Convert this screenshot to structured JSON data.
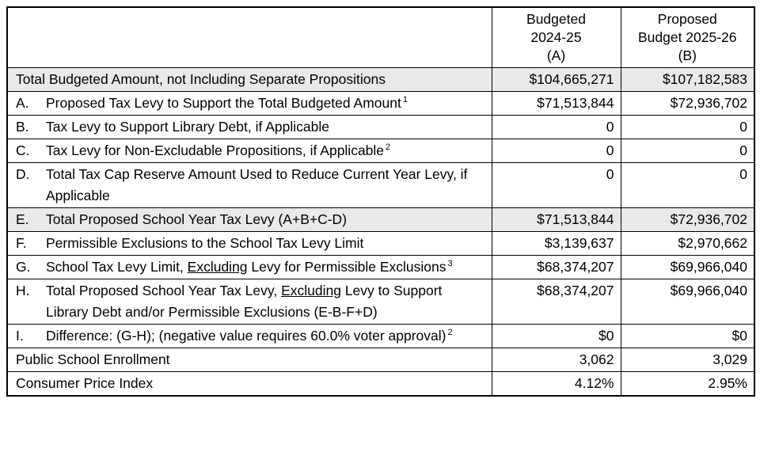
{
  "table": {
    "header": {
      "corner": "",
      "col_a": [
        "Budgeted",
        "2024-25",
        "(A)"
      ],
      "col_b": [
        "Proposed",
        "Budget 2025-26",
        "(B)"
      ]
    },
    "rows": [
      {
        "label": "Total Budgeted Amount, not Including Separate Propositions",
        "values": [
          "$104,665,271",
          "$107,182,583"
        ],
        "shaded": true
      },
      {
        "letter": "A.",
        "label": "Proposed Tax Levy to Support the Total Budgeted Amount",
        "sup": "1",
        "values": [
          "$71,513,844",
          "$72,936,702"
        ],
        "shaded": false
      },
      {
        "letter": "B.",
        "label": "Tax Levy to Support Library Debt, if Applicable",
        "values": [
          "0",
          "0"
        ],
        "shaded": false
      },
      {
        "letter": "C.",
        "label": "Tax Levy for Non-Excludable Propositions, if Applicable",
        "sup": "2",
        "values": [
          "0",
          "0"
        ],
        "shaded": false
      },
      {
        "letter": "D.",
        "label": "Total Tax Cap Reserve Amount Used to Reduce Current Year Levy, if Applicable",
        "values": [
          "0",
          "0"
        ],
        "shaded": false
      },
      {
        "letter": "E.",
        "label": "Total Proposed School Year Tax Levy (A+B+C-D)",
        "values": [
          "$71,513,844",
          "$72,936,702"
        ],
        "shaded": true
      },
      {
        "letter": "F.",
        "label": "Permissible Exclusions to the School Tax Levy Limit",
        "values": [
          "$3,139,637",
          "$2,970,662"
        ],
        "shaded": false
      },
      {
        "letter": "G.",
        "label_pre": "School Tax Levy Limit, ",
        "label_underlined": "Excluding",
        "label_post": " Levy for Permissible Exclusions",
        "sup": "3",
        "values": [
          "$68,374,207",
          "$69,966,040"
        ],
        "shaded": false
      },
      {
        "letter": "H.",
        "label_pre": "Total Proposed School Year Tax Levy, ",
        "label_underlined": "Excluding",
        "label_post": " Levy to Support Library Debt and/or Permissible Exclusions (E-B-F+D)",
        "values": [
          "$68,374,207",
          "$69,966,040"
        ],
        "shaded": false
      },
      {
        "letter": "I.",
        "label": "Difference: (G-H); (negative value requires 60.0% voter approval)",
        "sup": "2",
        "values": [
          "$0",
          "$0"
        ],
        "shaded": false
      },
      {
        "label": "Public School Enrollment",
        "values": [
          "3,062",
          "3,029"
        ],
        "shaded": false
      },
      {
        "label": "Consumer Price Index",
        "values": [
          "4.12%",
          "2.95%"
        ],
        "shaded": false
      }
    ],
    "colors": {
      "shaded_row_bg": "#e9e9e9",
      "border": "#000000",
      "text": "#000000"
    }
  }
}
